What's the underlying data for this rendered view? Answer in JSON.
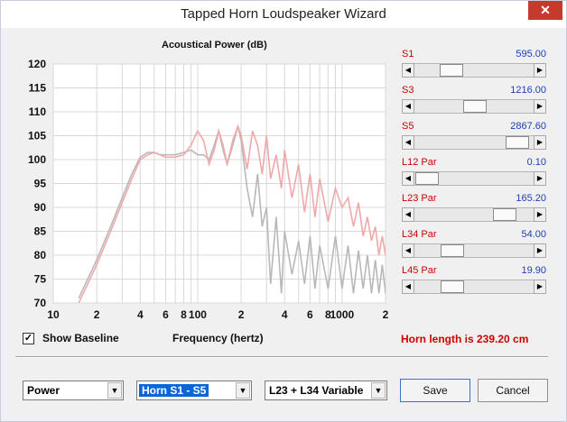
{
  "window": {
    "title": "Tapped Horn Loudspeaker Wizard",
    "close_glyph": "✕"
  },
  "chart": {
    "title": "Acoustical Power (dB)",
    "xlabel": "Frequency (hertz)",
    "y_ticks": [
      "120",
      "115",
      "110",
      "105",
      "100",
      "95",
      "90",
      "85",
      "80",
      "75",
      "70"
    ],
    "x_ticks": [
      "10",
      "2",
      "4",
      "6",
      "8",
      "100",
      "2",
      "4",
      "6",
      "8",
      "1000",
      "2"
    ]
  },
  "chart_data": {
    "type": "line",
    "title": "Acoustical Power (dB)",
    "xlabel": "Frequency (hertz)",
    "ylabel": "",
    "x_scale": "log",
    "xlim": [
      10,
      2000
    ],
    "ylim": [
      70,
      120
    ],
    "grid": true,
    "series": [
      {
        "color": "#f0a8a8",
        "x": [
          15,
          20,
          25,
          30,
          35,
          40,
          45,
          50,
          55,
          60,
          70,
          80,
          90,
          100,
          110,
          120,
          130,
          140,
          150,
          160,
          175,
          190,
          200,
          220,
          240,
          260,
          280,
          300,
          320,
          350,
          380,
          400,
          450,
          500,
          550,
          600,
          650,
          700,
          800,
          900,
          1000,
          1100,
          1200,
          1300,
          1400,
          1500,
          1600,
          1700,
          1800,
          1900,
          2000
        ],
        "y": [
          70,
          78,
          85,
          91,
          96,
          100,
          101,
          101.5,
          101,
          100.5,
          100.5,
          101,
          103,
          106,
          104,
          99,
          102,
          106,
          103,
          99,
          104,
          107,
          105,
          98,
          106,
          103,
          97,
          105,
          96,
          101,
          94,
          102,
          92,
          99,
          89,
          97,
          88,
          96,
          87,
          94,
          90,
          92,
          86,
          91,
          84,
          88,
          83,
          86,
          80,
          84,
          80
        ]
      },
      {
        "color": "#b8b8b8",
        "x": [
          15,
          20,
          25,
          30,
          35,
          40,
          45,
          50,
          55,
          60,
          70,
          80,
          90,
          100,
          110,
          120,
          130,
          140,
          150,
          160,
          175,
          190,
          200,
          220,
          240,
          260,
          280,
          300,
          320,
          350,
          380,
          400,
          450,
          500,
          550,
          600,
          650,
          700,
          800,
          900,
          1000,
          1100,
          1200,
          1300,
          1400,
          1500,
          1600,
          1700,
          1800,
          1900,
          2000
        ],
        "y": [
          71,
          79,
          86,
          92,
          97,
          100.5,
          101.5,
          101.5,
          101,
          101,
          101,
          101.5,
          102,
          101,
          101,
          100,
          103,
          106,
          102,
          99,
          103,
          107,
          104,
          94,
          88,
          97,
          86,
          90,
          74,
          88,
          72,
          85,
          76,
          83,
          74,
          84,
          73,
          82,
          73,
          84,
          73,
          82,
          72,
          81,
          73,
          80,
          72,
          79,
          72,
          78,
          72
        ]
      }
    ]
  },
  "sliders": [
    {
      "label": "S1",
      "value": "595.00",
      "position": 0.26
    },
    {
      "label": "S3",
      "value": "1216.00",
      "position": 0.51
    },
    {
      "label": "S5",
      "value": "2867.60",
      "position": 0.96
    },
    {
      "label": "L12  Par",
      "value": "0.10",
      "position": 0.0
    },
    {
      "label": "L23  Par",
      "value": "165.20",
      "position": 0.83
    },
    {
      "label": "L34  Par",
      "value": "54.00",
      "position": 0.27
    },
    {
      "label": "L45  Par",
      "value": "19.90",
      "position": 0.27
    }
  ],
  "baseline": {
    "checked": true,
    "label": "Show Baseline",
    "check_glyph": "✓"
  },
  "horn_length": "Horn length is 239.20 cm",
  "controls": {
    "mode_select": "Power",
    "horn_select": "Horn S1 - S5",
    "variable_select": "L23 + L34 Variable",
    "save_label": "Save",
    "cancel_label": "Cancel"
  }
}
